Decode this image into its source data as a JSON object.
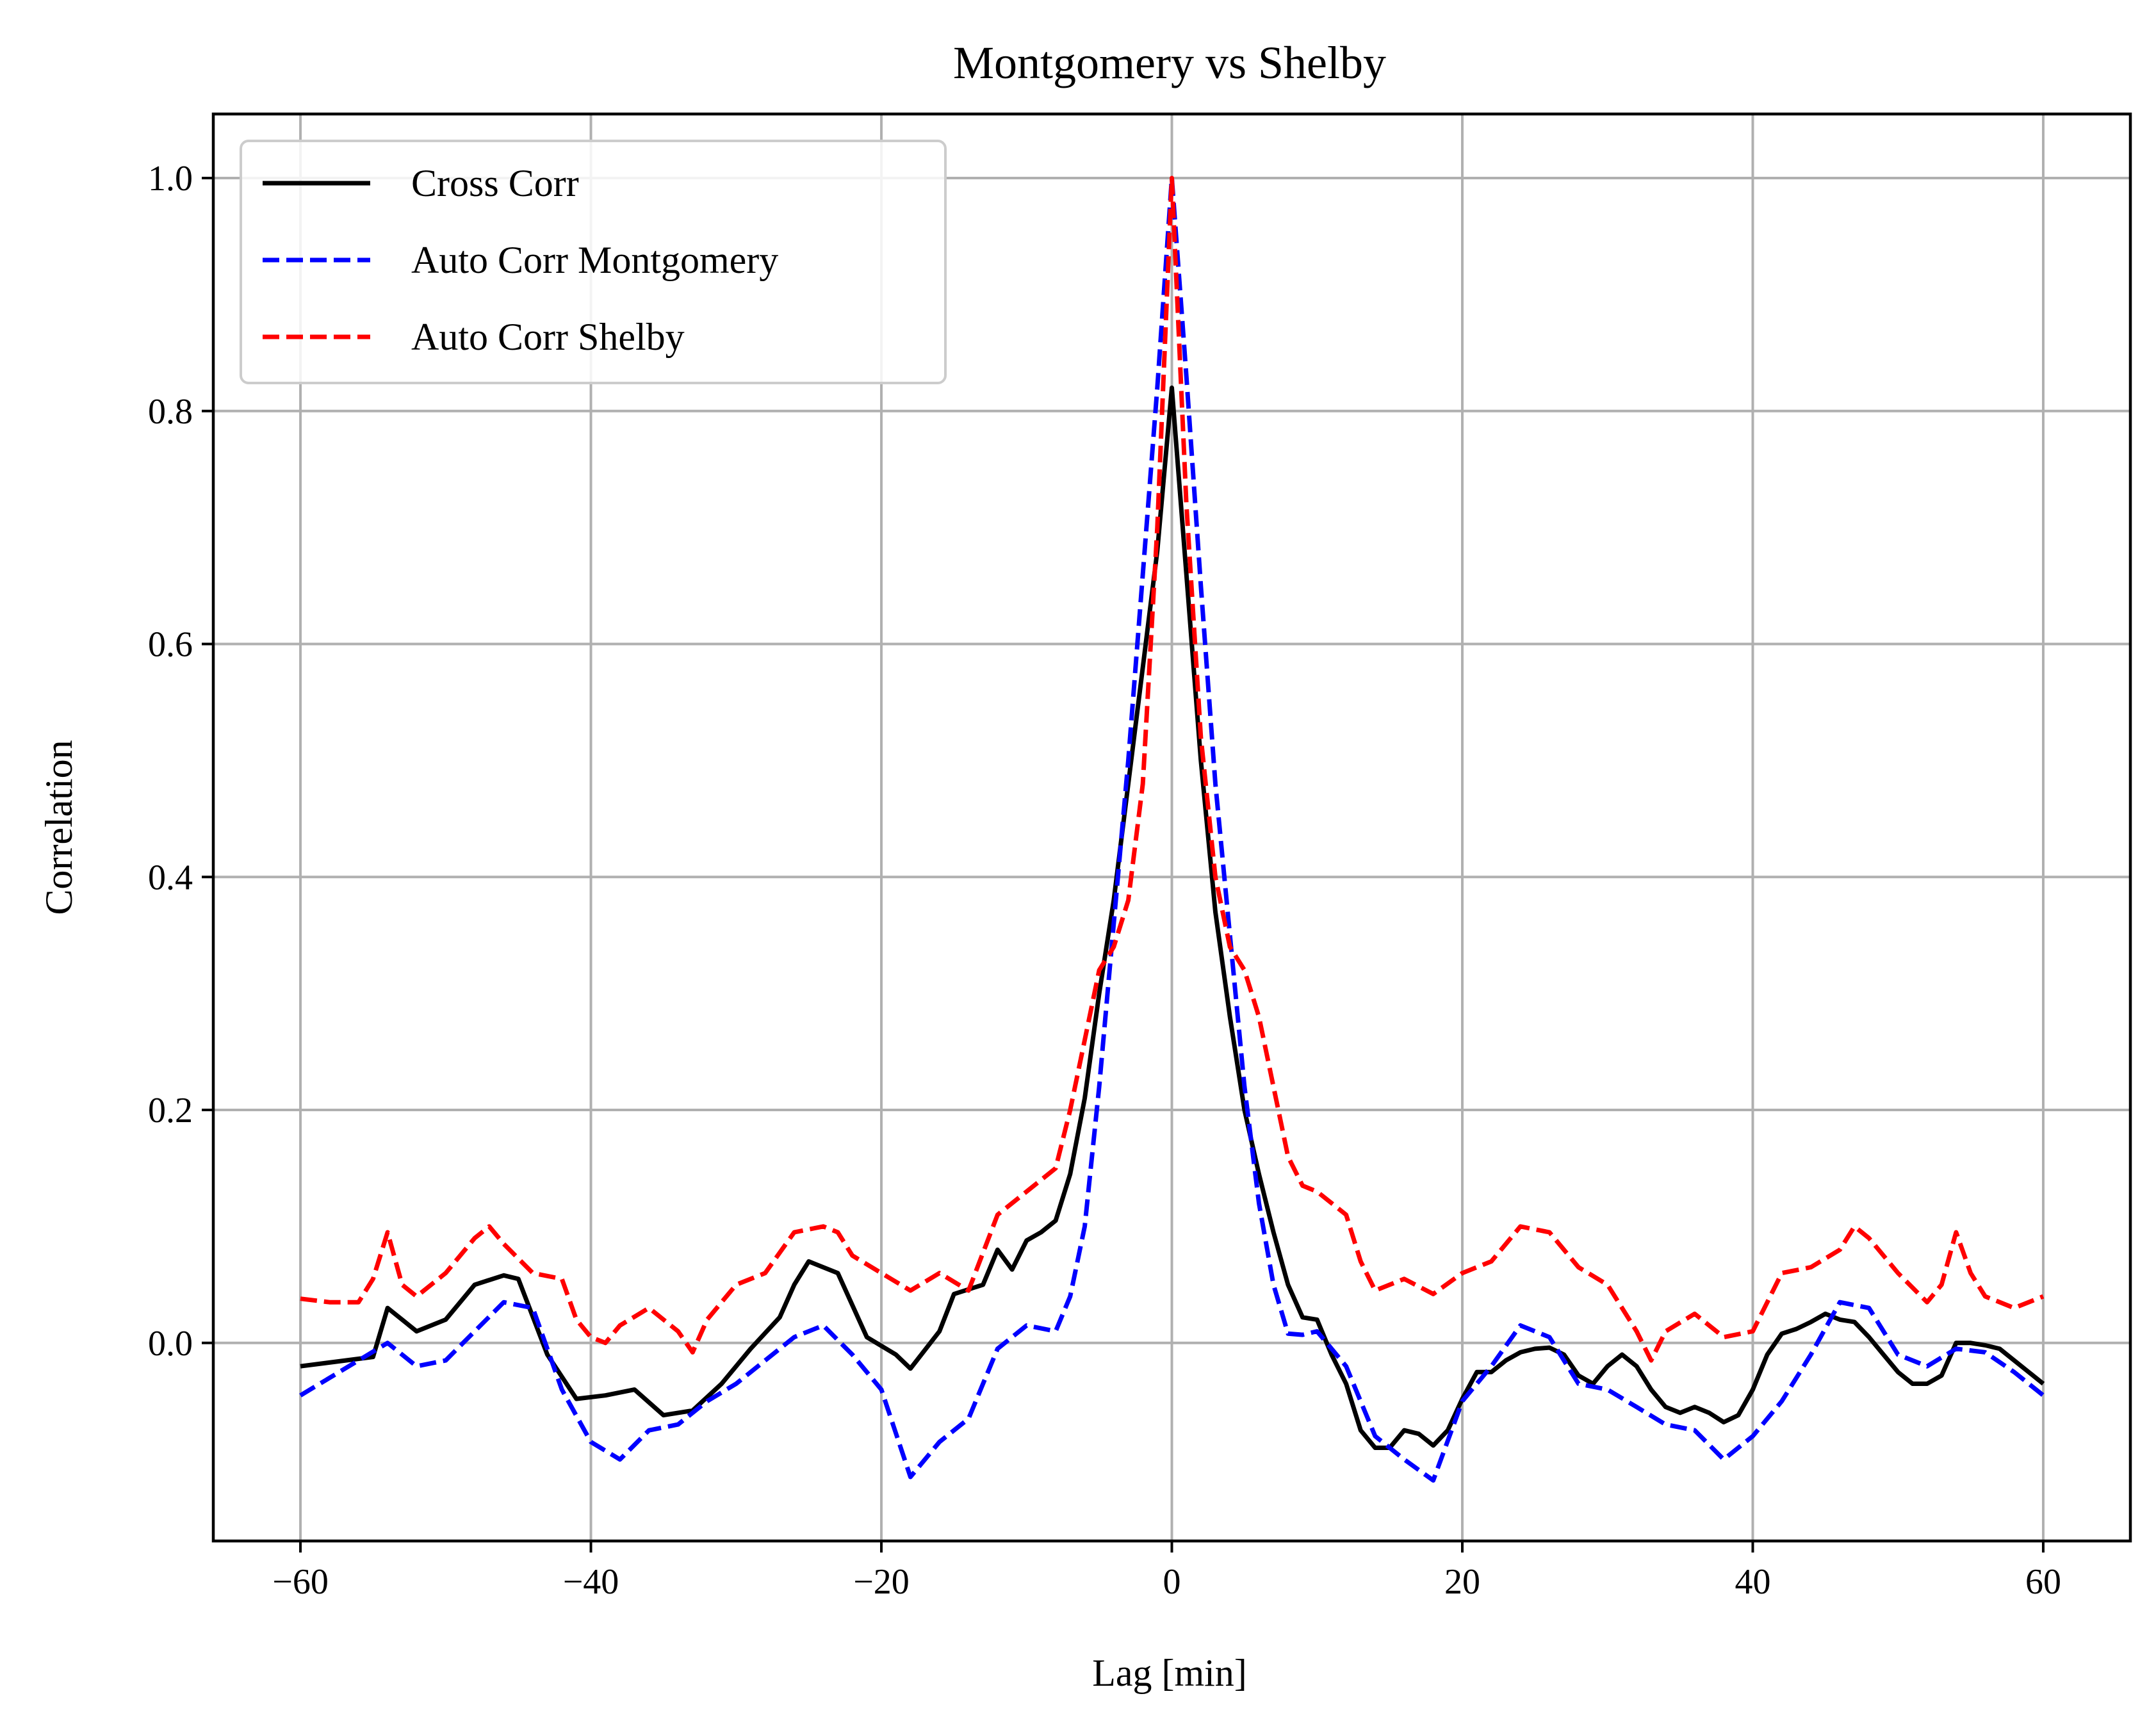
{
  "chart_data": {
    "type": "line",
    "title": "Montgomery vs Shelby",
    "xlabel": "Lag [min]",
    "ylabel": "Correlation",
    "xlim": [
      -66,
      66
    ],
    "ylim": [
      -0.17,
      1.055
    ],
    "xticks": [
      -60,
      -40,
      -20,
      0,
      20,
      40,
      60
    ],
    "xtick_labels": [
      "−60",
      "−40",
      "−20",
      "0",
      "20",
      "40",
      "60"
    ],
    "yticks": [
      0.0,
      0.2,
      0.4,
      0.6,
      0.8,
      1.0
    ],
    "ytick_labels": [
      "0.0",
      "0.2",
      "0.4",
      "0.6",
      "0.8",
      "1.0"
    ],
    "grid": true,
    "legend_position": "top-left",
    "series": [
      {
        "name": "Cross Corr",
        "color": "#000000",
        "style": "solid",
        "x": [
          -60,
          -55,
          -54,
          -52,
          -50,
          -48,
          -46,
          -45,
          -43,
          -41,
          -39,
          -37,
          -35,
          -33,
          -31,
          -29,
          -27,
          -26,
          -25,
          -23,
          -21,
          -19,
          -18,
          -16,
          -15,
          -13,
          -12,
          -11,
          -10,
          -9,
          -8,
          -7,
          -6,
          -5,
          -4,
          -3,
          -2,
          -1,
          0,
          1,
          2,
          3,
          4,
          5,
          6,
          7,
          8,
          9,
          10,
          11,
          12,
          13,
          14,
          15,
          16,
          17,
          18,
          19,
          20,
          21,
          22,
          23,
          24,
          25,
          26,
          27,
          28,
          29,
          30,
          31,
          32,
          33,
          34,
          35,
          36,
          37,
          38,
          39,
          40,
          41,
          42,
          43,
          44,
          45,
          46,
          47,
          48,
          49,
          50,
          51,
          52,
          53,
          54,
          55,
          56,
          57,
          58,
          59,
          60
        ],
        "y": [
          -0.02,
          -0.012,
          0.03,
          0.01,
          0.02,
          0.05,
          0.058,
          0.055,
          -0.01,
          -0.048,
          -0.045,
          -0.04,
          -0.062,
          -0.058,
          -0.035,
          -0.005,
          0.022,
          0.05,
          0.07,
          0.06,
          0.005,
          -0.01,
          -0.022,
          0.01,
          0.042,
          0.05,
          0.08,
          0.063,
          0.088,
          0.095,
          0.105,
          0.145,
          0.21,
          0.3,
          0.38,
          0.48,
          0.58,
          0.68,
          0.82,
          0.66,
          0.5,
          0.37,
          0.28,
          0.2,
          0.145,
          0.095,
          0.05,
          0.022,
          0.02,
          -0.01,
          -0.035,
          -0.075,
          -0.09,
          -0.09,
          -0.075,
          -0.078,
          -0.088,
          -0.075,
          -0.048,
          -0.025,
          -0.025,
          -0.015,
          -0.008,
          -0.005,
          -0.004,
          -0.01,
          -0.028,
          -0.035,
          -0.02,
          -0.01,
          -0.02,
          -0.04,
          -0.055,
          -0.06,
          -0.055,
          -0.06,
          -0.068,
          -0.062,
          -0.04,
          -0.01,
          0.008,
          0.012,
          0.018,
          0.025,
          0.02,
          0.018,
          0.005,
          -0.01,
          -0.025,
          -0.035,
          -0.035,
          -0.028,
          0.0,
          0.0,
          -0.002,
          -0.005,
          -0.015,
          -0.025,
          -0.035
        ]
      },
      {
        "name": "Auto Corr Montgomery",
        "color": "#0000ff",
        "style": "dashed",
        "x": [
          -60,
          -58,
          -56,
          -54,
          -52,
          -50,
          -48,
          -46,
          -44,
          -42,
          -40,
          -38,
          -36,
          -34,
          -32,
          -30,
          -28,
          -26,
          -24,
          -22,
          -20,
          -18,
          -16,
          -14,
          -12,
          -10,
          -8,
          -7,
          -6,
          -5,
          -4,
          -3,
          -2,
          -1,
          0,
          1,
          2,
          3,
          4,
          5,
          6,
          7,
          8,
          9,
          10,
          12,
          14,
          16,
          18,
          20,
          22,
          24,
          26,
          28,
          30,
          32,
          34,
          36,
          38,
          40,
          42,
          44,
          46,
          48,
          50,
          52,
          54,
          56,
          58,
          60
        ],
        "y": [
          -0.045,
          -0.03,
          -0.015,
          0.0,
          -0.02,
          -0.015,
          0.01,
          0.035,
          0.03,
          -0.04,
          -0.085,
          -0.1,
          -0.075,
          -0.07,
          -0.05,
          -0.035,
          -0.015,
          0.005,
          0.015,
          -0.01,
          -0.04,
          -0.115,
          -0.085,
          -0.065,
          -0.005,
          0.015,
          0.01,
          0.04,
          0.1,
          0.22,
          0.36,
          0.5,
          0.66,
          0.82,
          1.0,
          0.83,
          0.65,
          0.48,
          0.35,
          0.22,
          0.12,
          0.05,
          0.008,
          0.007,
          0.01,
          -0.02,
          -0.08,
          -0.1,
          -0.118,
          -0.05,
          -0.02,
          0.015,
          0.005,
          -0.035,
          -0.04,
          -0.055,
          -0.07,
          -0.075,
          -0.1,
          -0.08,
          -0.05,
          -0.01,
          0.035,
          0.03,
          -0.01,
          -0.02,
          -0.005,
          -0.008,
          -0.025,
          -0.045
        ]
      },
      {
        "name": "Auto Corr Shelby",
        "color": "#ff0000",
        "style": "dashed",
        "x": [
          -60,
          -58,
          -56,
          -55,
          -54,
          -53,
          -52,
          -50,
          -48,
          -47,
          -46,
          -44,
          -42,
          -41,
          -40,
          -39,
          -38,
          -36,
          -34,
          -33,
          -32,
          -30,
          -28,
          -26,
          -24,
          -23,
          -22,
          -20,
          -18,
          -16,
          -14,
          -12,
          -10,
          -8,
          -7,
          -6,
          -5,
          -4,
          -3,
          -2,
          -1,
          0,
          1,
          2,
          3,
          4,
          5,
          6,
          7,
          8,
          9,
          10,
          12,
          13,
          14,
          16,
          18,
          20,
          22,
          24,
          26,
          28,
          30,
          32,
          33,
          34,
          36,
          38,
          40,
          42,
          44,
          46,
          47,
          48,
          50,
          52,
          53,
          54,
          55,
          56,
          58,
          60
        ],
        "y": [
          0.038,
          0.035,
          0.035,
          0.055,
          0.095,
          0.05,
          0.04,
          0.06,
          0.09,
          0.1,
          0.085,
          0.06,
          0.055,
          0.02,
          0.005,
          0.0,
          0.015,
          0.03,
          0.01,
          -0.008,
          0.02,
          0.05,
          0.06,
          0.095,
          0.1,
          0.095,
          0.075,
          0.06,
          0.045,
          0.06,
          0.045,
          0.11,
          0.13,
          0.15,
          0.2,
          0.26,
          0.32,
          0.34,
          0.38,
          0.48,
          0.7,
          1.0,
          0.72,
          0.52,
          0.4,
          0.34,
          0.32,
          0.28,
          0.22,
          0.16,
          0.135,
          0.13,
          0.11,
          0.07,
          0.045,
          0.055,
          0.042,
          0.06,
          0.07,
          0.1,
          0.095,
          0.065,
          0.05,
          0.01,
          -0.015,
          0.01,
          0.025,
          0.005,
          0.01,
          0.06,
          0.065,
          0.08,
          0.1,
          0.09,
          0.06,
          0.035,
          0.05,
          0.095,
          0.06,
          0.04,
          0.03,
          0.04
        ]
      }
    ]
  }
}
